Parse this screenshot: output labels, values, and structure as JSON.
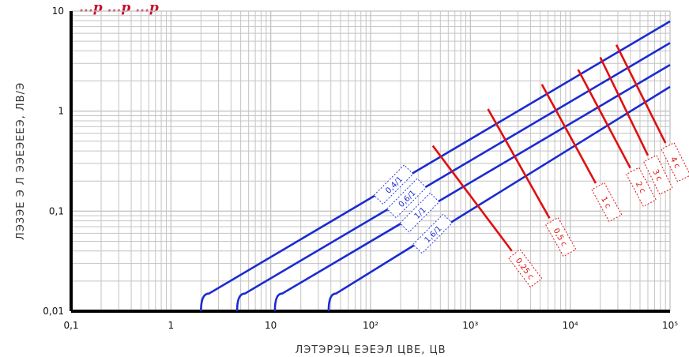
{
  "page_title": "...р ...р ...р",
  "chart_data": {
    "type": "line",
    "title": "",
    "xlabel": "ЛЭТЭРЭЦ ЕЭЕЭЛ ЦВЕ, ЦВ",
    "ylabel": "ЛЭЗЭЕ Э Л ЭЭЕЭЕЕЭ, ЛВ/Э",
    "x_scale": "log",
    "y_scale": "log",
    "xlim": [
      0.1,
      100000
    ],
    "ylim": [
      0.01,
      10
    ],
    "x_ticks": [
      {
        "value": 0.1,
        "label": "0,1"
      },
      {
        "value": 1,
        "label": "1"
      },
      {
        "value": 10,
        "label": "10"
      },
      {
        "value": 100,
        "label": "10²"
      },
      {
        "value": 1000,
        "label": "10³"
      },
      {
        "value": 10000,
        "label": "10⁴"
      },
      {
        "value": 100000,
        "label": "10⁵"
      }
    ],
    "y_ticks": [
      {
        "value": 0.01,
        "label": "0,01"
      },
      {
        "value": 0.1,
        "label": "0,1"
      },
      {
        "value": 1,
        "label": "1"
      },
      {
        "value": 10,
        "label": "10"
      }
    ],
    "grid": true,
    "series": [
      {
        "name": "0,4/1",
        "values": [
          [
            2,
            0.01
          ],
          [
            2.4,
            0.015
          ],
          [
            100000,
            7.9
          ]
        ]
      },
      {
        "name": "0,6/1",
        "values": [
          [
            4.6,
            0.01
          ],
          [
            5.5,
            0.015
          ],
          [
            100000,
            4.8
          ]
        ]
      },
      {
        "name": "1/1",
        "values": [
          [
            11,
            0.01
          ],
          [
            13,
            0.015
          ],
          [
            100000,
            2.9
          ]
        ]
      },
      {
        "name": "1,6/1",
        "values": [
          [
            38,
            0.01
          ],
          [
            45,
            0.015
          ],
          [
            100000,
            1.75
          ]
        ]
      }
    ],
    "cutoff_lines": [
      {
        "label": "0,25 с",
        "start": [
          420,
          0.45
        ],
        "end": [
          2600,
          0.04
        ]
      },
      {
        "label": "0,5 с",
        "start": [
          1500,
          1.05
        ],
        "end": [
          6200,
          0.085
        ]
      },
      {
        "label": "1 с",
        "start": [
          5200,
          1.85
        ],
        "end": [
          18000,
          0.19
        ]
      },
      {
        "label": "2 с",
        "start": [
          12000,
          2.6
        ],
        "end": [
          40000,
          0.27
        ]
      },
      {
        "label": "3 с",
        "start": [
          20000,
          3.45
        ],
        "end": [
          60000,
          0.36
        ]
      },
      {
        "label": "4 с",
        "start": [
          29000,
          4.6
        ],
        "end": [
          90000,
          0.48
        ]
      }
    ],
    "colors": {
      "curve": "#1b2bd0",
      "cutoff": "#e01010",
      "grid": "#c4c4c4",
      "axis": "#000000"
    }
  }
}
